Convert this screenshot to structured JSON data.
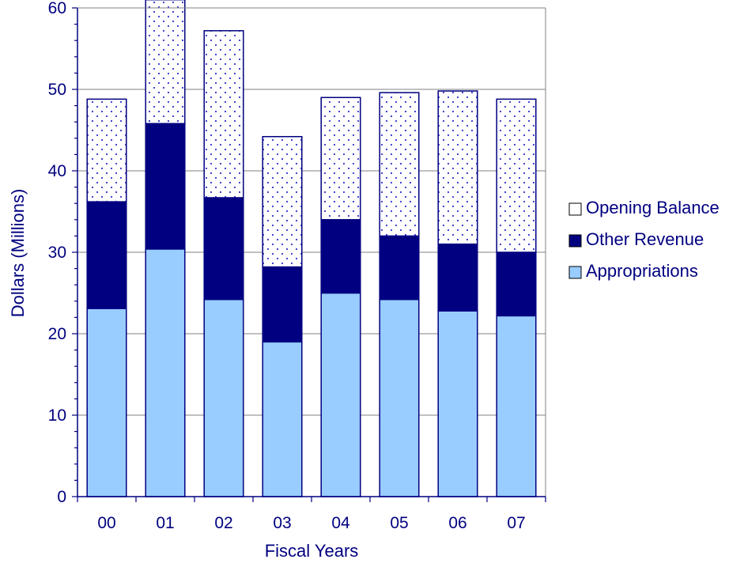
{
  "chart_data": {
    "type": "bar",
    "stacked": true,
    "title": "",
    "xlabel": "Fiscal Years",
    "ylabel": "Dollars (Millions)",
    "ylim": [
      0,
      60
    ],
    "y_ticks": [
      0,
      10,
      20,
      30,
      40,
      50,
      60
    ],
    "y_tick_labels": [
      "0",
      "10",
      "20",
      "30",
      "40",
      "50",
      "60"
    ],
    "categories": [
      "00",
      "01",
      "02",
      "03",
      "04",
      "05",
      "06",
      "07"
    ],
    "grid": true,
    "legend_position": "right",
    "series": [
      {
        "name": "Appropriations",
        "color": "#99ccff",
        "pattern": "solid",
        "values": [
          23.1,
          30.4,
          24.2,
          19.0,
          25.0,
          24.2,
          22.8,
          22.2
        ]
      },
      {
        "name": "Other Revenue",
        "color": "#000080",
        "pattern": "solid",
        "values": [
          13.1,
          15.4,
          12.5,
          9.2,
          9.0,
          7.8,
          8.2,
          7.8
        ]
      },
      {
        "name": "Opening Balance",
        "color": "#ffffff",
        "pattern": "dots",
        "values": [
          12.6,
          15.2,
          20.5,
          16.0,
          15.0,
          17.6,
          18.8,
          18.8
        ]
      }
    ],
    "legend_order": [
      "Opening Balance",
      "Other Revenue",
      "Appropriations"
    ],
    "colors": {
      "axis": "#000080",
      "grid": "#808080",
      "dot": "#3333cc"
    }
  }
}
